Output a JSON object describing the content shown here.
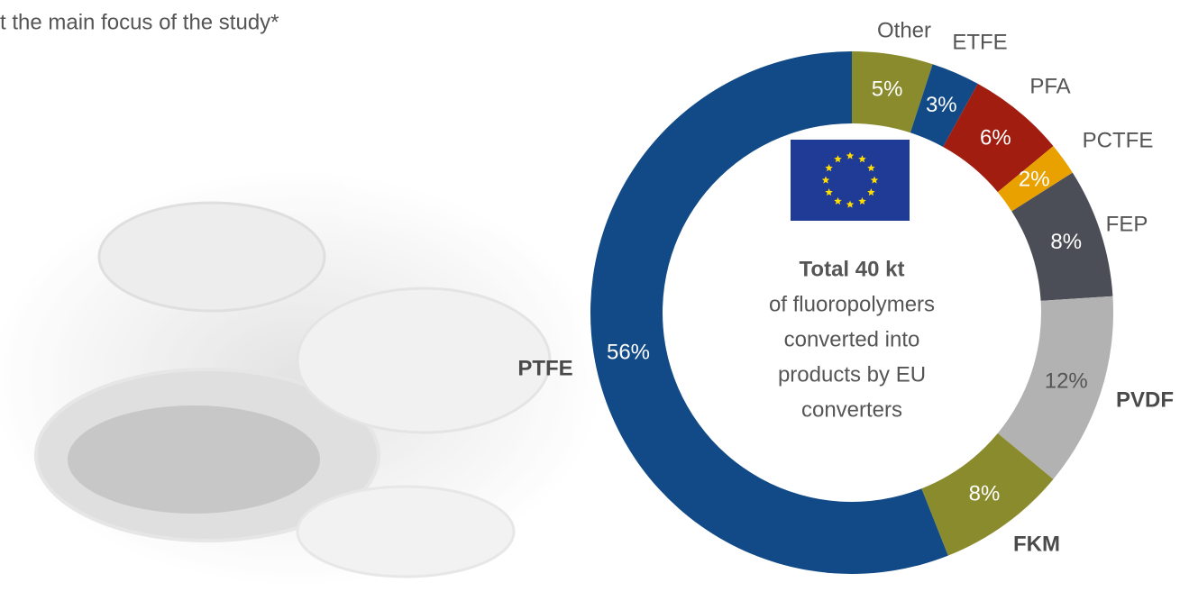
{
  "chart_data": {
    "type": "donut",
    "title": "t the main focus of the study*",
    "center_text": [
      "Total 40 kt",
      "of fluoropolymers",
      "converted into",
      "products by EU",
      "converters"
    ],
    "categories": [
      "Other",
      "ETFE",
      "PFA",
      "PCTFE",
      "FEP",
      "PVDF",
      "FKM",
      "PTFE"
    ],
    "values": [
      5,
      3,
      6,
      2,
      8,
      12,
      8,
      56
    ],
    "value_labels": [
      "5%",
      "3%",
      "6%",
      "2%",
      "8%",
      "12%",
      "8%",
      "56%"
    ],
    "colors": [
      "#8a8b2c",
      "#114a86",
      "#a11d10",
      "#e9a100",
      "#4b4e56",
      "#b2b2b2",
      "#8a8b2c",
      "#114a86"
    ]
  }
}
